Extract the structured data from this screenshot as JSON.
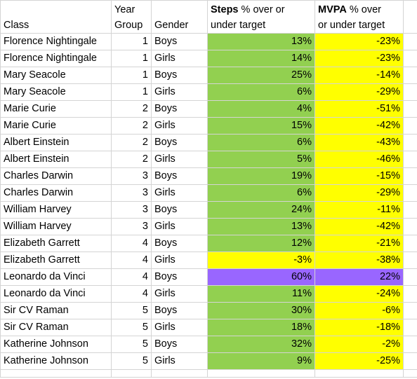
{
  "headers": {
    "class": "Class",
    "year_line1": "Year",
    "year_line2": "Group",
    "gender": "Gender",
    "steps_bold": "Steps",
    "steps_rest_line1": " % over or",
    "steps_line2": "under target",
    "mvpa_bold": "MVPA",
    "mvpa_rest_line1": " % over",
    "mvpa_line2": "or under target"
  },
  "fill_colors": {
    "green": "#92d050",
    "yellow": "#ffff00",
    "purple": "#9966ff"
  },
  "rows": [
    {
      "class": "Florence Nightingale",
      "year": "1",
      "gender": "Boys",
      "steps": "13%",
      "steps_fill": "green",
      "mvpa": "-23%",
      "mvpa_fill": "yellow"
    },
    {
      "class": "Florence Nightingale",
      "year": "1",
      "gender": "Girls",
      "steps": "14%",
      "steps_fill": "green",
      "mvpa": "-23%",
      "mvpa_fill": "yellow"
    },
    {
      "class": "Mary Seacole",
      "year": "1",
      "gender": "Boys",
      "steps": "25%",
      "steps_fill": "green",
      "mvpa": "-14%",
      "mvpa_fill": "yellow"
    },
    {
      "class": "Mary Seacole",
      "year": "1",
      "gender": "Girls",
      "steps": "6%",
      "steps_fill": "green",
      "mvpa": "-29%",
      "mvpa_fill": "yellow"
    },
    {
      "class": "Marie Curie",
      "year": "2",
      "gender": "Boys",
      "steps": "4%",
      "steps_fill": "green",
      "mvpa": "-51%",
      "mvpa_fill": "yellow"
    },
    {
      "class": "Marie Curie",
      "year": "2",
      "gender": "Girls",
      "steps": "15%",
      "steps_fill": "green",
      "mvpa": "-42%",
      "mvpa_fill": "yellow"
    },
    {
      "class": "Albert Einstein",
      "year": "2",
      "gender": "Boys",
      "steps": "6%",
      "steps_fill": "green",
      "mvpa": "-43%",
      "mvpa_fill": "yellow"
    },
    {
      "class": "Albert Einstein",
      "year": "2",
      "gender": "Girls",
      "steps": "5%",
      "steps_fill": "green",
      "mvpa": "-46%",
      "mvpa_fill": "yellow"
    },
    {
      "class": "Charles Darwin",
      "year": "3",
      "gender": "Boys",
      "steps": "19%",
      "steps_fill": "green",
      "mvpa": "-15%",
      "mvpa_fill": "yellow"
    },
    {
      "class": "Charles Darwin",
      "year": "3",
      "gender": "Girls",
      "steps": "6%",
      "steps_fill": "green",
      "mvpa": "-29%",
      "mvpa_fill": "yellow"
    },
    {
      "class": "William Harvey",
      "year": "3",
      "gender": "Boys",
      "steps": "24%",
      "steps_fill": "green",
      "mvpa": "-11%",
      "mvpa_fill": "yellow"
    },
    {
      "class": "William Harvey",
      "year": "3",
      "gender": "Girls",
      "steps": "13%",
      "steps_fill": "green",
      "mvpa": "-42%",
      "mvpa_fill": "yellow"
    },
    {
      "class": "Elizabeth Garrett",
      "year": "4",
      "gender": "Boys",
      "steps": "12%",
      "steps_fill": "green",
      "mvpa": "-21%",
      "mvpa_fill": "yellow"
    },
    {
      "class": "Elizabeth Garrett",
      "year": "4",
      "gender": "Girls",
      "steps": "-3%",
      "steps_fill": "yellow",
      "mvpa": "-38%",
      "mvpa_fill": "yellow"
    },
    {
      "class": "Leonardo da Vinci",
      "year": "4",
      "gender": "Boys",
      "steps": "60%",
      "steps_fill": "purple",
      "mvpa": "22%",
      "mvpa_fill": "purple"
    },
    {
      "class": "Leonardo da Vinci",
      "year": "4",
      "gender": "Girls",
      "steps": "11%",
      "steps_fill": "green",
      "mvpa": "-24%",
      "mvpa_fill": "yellow"
    },
    {
      "class": "Sir CV Raman",
      "year": "5",
      "gender": "Boys",
      "steps": "30%",
      "steps_fill": "green",
      "mvpa": "-6%",
      "mvpa_fill": "yellow"
    },
    {
      "class": "Sir CV Raman",
      "year": "5",
      "gender": "Girls",
      "steps": "18%",
      "steps_fill": "green",
      "mvpa": "-18%",
      "mvpa_fill": "yellow"
    },
    {
      "class": "Katherine Johnson",
      "year": "5",
      "gender": "Boys",
      "steps": "32%",
      "steps_fill": "green",
      "mvpa": "-2%",
      "mvpa_fill": "yellow"
    },
    {
      "class": "Katherine Johnson",
      "year": "5",
      "gender": "Girls",
      "steps": "9%",
      "steps_fill": "green",
      "mvpa": "-25%",
      "mvpa_fill": "yellow"
    }
  ]
}
